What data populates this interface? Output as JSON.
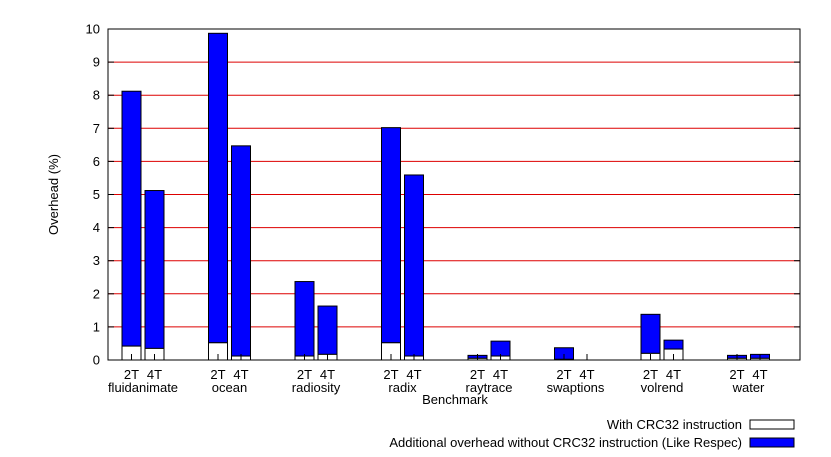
{
  "chart_data": {
    "type": "bar",
    "stacked": true,
    "title": "",
    "xlabel": "Benchmark",
    "ylabel": "Overhead (%)",
    "ylim": [
      0,
      10
    ],
    "yticks": [
      0,
      1,
      2,
      3,
      4,
      5,
      6,
      7,
      8,
      9,
      10
    ],
    "grid": "horizontal",
    "grid_color": "#dd0000",
    "legend_position": "bottom-right",
    "groups": [
      {
        "name": "fluidanimate",
        "bars": [
          {
            "label": "2T",
            "base": 0.42,
            "extra": 7.7
          },
          {
            "label": "4T",
            "base": 0.35,
            "extra": 4.77
          }
        ]
      },
      {
        "name": "ocean",
        "bars": [
          {
            "label": "2T",
            "base": 0.52,
            "extra": 9.35
          },
          {
            "label": "4T",
            "base": 0.12,
            "extra": 6.35
          }
        ]
      },
      {
        "name": "radiosity",
        "bars": [
          {
            "label": "2T",
            "base": 0.12,
            "extra": 2.25
          },
          {
            "label": "4T",
            "base": 0.17,
            "extra": 1.46
          }
        ]
      },
      {
        "name": "radix",
        "bars": [
          {
            "label": "2T",
            "base": 0.52,
            "extra": 6.5
          },
          {
            "label": "4T",
            "base": 0.12,
            "extra": 5.47
          }
        ]
      },
      {
        "name": "raytrace",
        "bars": [
          {
            "label": "2T",
            "base": 0.05,
            "extra": 0.09
          },
          {
            "label": "4T",
            "base": 0.12,
            "extra": 0.45
          }
        ]
      },
      {
        "name": "swaptions",
        "bars": [
          {
            "label": "2T",
            "base": 0.02,
            "extra": 0.35
          },
          {
            "label": "4T",
            "base": 0.0,
            "extra": 0.0
          }
        ]
      },
      {
        "name": "volrend",
        "bars": [
          {
            "label": "2T",
            "base": 0.2,
            "extra": 1.18
          },
          {
            "label": "4T",
            "base": 0.33,
            "extra": 0.27
          }
        ]
      },
      {
        "name": "water",
        "bars": [
          {
            "label": "2T",
            "base": 0.05,
            "extra": 0.09
          },
          {
            "label": "4T",
            "base": 0.05,
            "extra": 0.12
          }
        ]
      }
    ],
    "series": [
      {
        "name": "With CRC32 instruction",
        "key": "base",
        "color": "#ffffff"
      },
      {
        "name": "Additional overhead without CRC32 instruction (Like Respec)",
        "key": "extra",
        "color": "#0000ff"
      }
    ]
  }
}
